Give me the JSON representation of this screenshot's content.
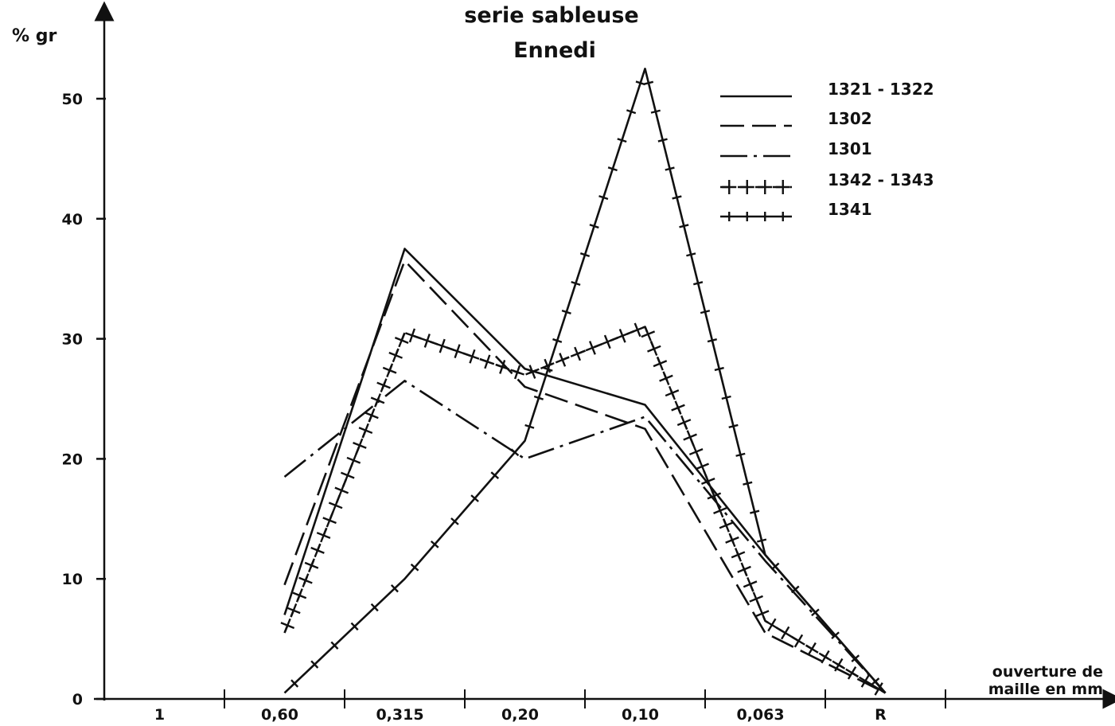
{
  "chart_data": {
    "type": "line",
    "title": "serie sableuse",
    "subtitle": "Ennedi",
    "ylabel": "% gr",
    "xlabel_line1": "ouverture de",
    "xlabel_line2": "maille en mm",
    "categories": [
      "1",
      "0,60",
      "0,315",
      "0,20",
      "0,10",
      "0,063",
      "R"
    ],
    "ylim": [
      0,
      50
    ],
    "yticks": [
      0,
      10,
      20,
      30,
      40,
      50
    ],
    "grid": false,
    "legend_position": "top-right",
    "series": [
      {
        "name": "1321 - 1322",
        "style": "solid",
        "values": [
          null,
          7,
          37.5,
          27.5,
          24.5,
          12,
          0.5
        ]
      },
      {
        "name": "1302",
        "style": "dashed",
        "values": [
          null,
          9.5,
          36.5,
          26,
          22.5,
          5.5,
          0.5
        ]
      },
      {
        "name": "1301",
        "style": "dashdot",
        "values": [
          null,
          18.5,
          26.5,
          20,
          23.5,
          11.5,
          0.5
        ]
      },
      {
        "name": "1342 - 1343",
        "style": "dashcross",
        "values": [
          null,
          5.5,
          30.5,
          27,
          31,
          6.5,
          0.5
        ]
      },
      {
        "name": "1341",
        "style": "solidcross",
        "values": [
          null,
          0.5,
          10,
          21.5,
          52.5,
          12,
          0.5
        ]
      }
    ]
  }
}
